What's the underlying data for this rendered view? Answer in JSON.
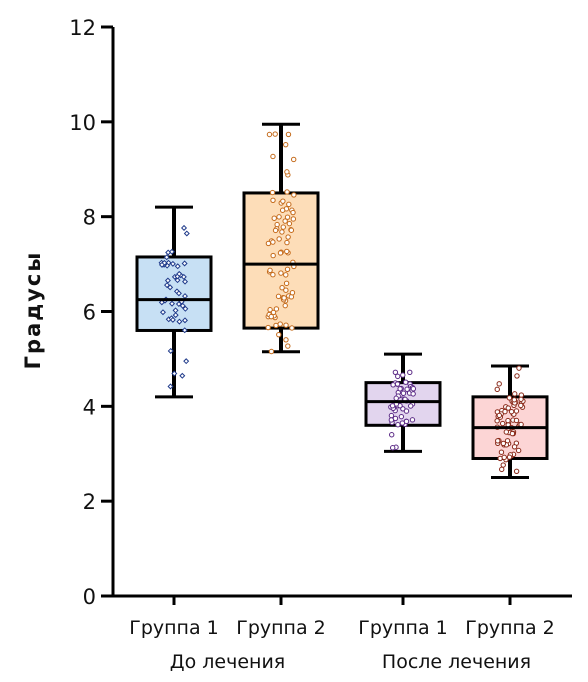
{
  "chart_data": {
    "type": "box",
    "ylabel": "Градусы",
    "ylim": [
      0,
      12
    ],
    "yticks": [
      0,
      2,
      4,
      6,
      8,
      10,
      12
    ],
    "groups": [
      {
        "label": "До лечения",
        "categories": [
          "Группа 1",
          "Группа 2"
        ]
      },
      {
        "label": "После лечения",
        "categories": [
          "Группа 1",
          "Группа 2"
        ]
      }
    ],
    "boxes": [
      {
        "group": "До лечения",
        "category": "Группа 1",
        "min": 4.2,
        "q1": 5.6,
        "median": 6.25,
        "q3": 7.15,
        "max": 8.2,
        "fill": "#c7e0f4",
        "point_color": "#1f3a8a",
        "n_points": 50
      },
      {
        "group": "До лечения",
        "category": "Группа 2",
        "min": 5.15,
        "q1": 5.65,
        "median": 7.0,
        "q3": 8.5,
        "max": 9.95,
        "fill": "#fdddb8",
        "point_color": "#c46a1a",
        "n_points": 80
      },
      {
        "group": "После лечения",
        "category": "Группа 1",
        "min": 3.05,
        "q1": 3.6,
        "median": 4.1,
        "q3": 4.5,
        "max": 5.1,
        "fill": "#e2d5ee",
        "point_color": "#5b2a86",
        "n_points": 55
      },
      {
        "group": "После лечения",
        "category": "Группа 2",
        "min": 2.5,
        "q1": 2.9,
        "median": 3.55,
        "q3": 4.2,
        "max": 4.85,
        "fill": "#fcd5d5",
        "point_color": "#8a2a1a",
        "n_points": 70
      }
    ]
  }
}
